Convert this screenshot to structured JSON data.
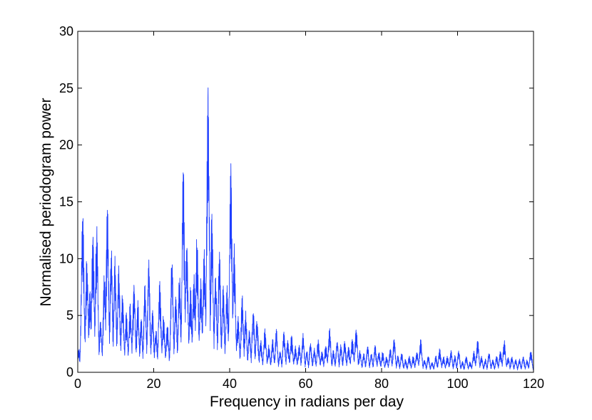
{
  "chart_data": {
    "type": "line",
    "title": "",
    "xlabel": "Frequency in radians per day",
    "ylabel": "Normalised periodogram power",
    "xlim": [
      0,
      120
    ],
    "ylim": [
      0,
      30
    ],
    "xticks": [
      0,
      20,
      40,
      60,
      80,
      100,
      120
    ],
    "yticks": [
      0,
      5,
      10,
      15,
      20,
      25,
      30
    ],
    "xtick_labels": [
      "0",
      "20",
      "40",
      "60",
      "80",
      "100",
      "120"
    ],
    "ytick_labels": [
      "0",
      "5",
      "10",
      "15",
      "20",
      "25",
      "30"
    ],
    "grid": false,
    "legend": "none",
    "line_color": "#1f3fff",
    "series": [
      {
        "peaks": [
          [
            0.3,
            2.2
          ],
          [
            1.3,
            16.0
          ],
          [
            2.4,
            11.0
          ],
          [
            3.2,
            8.0
          ],
          [
            4.0,
            13.2
          ],
          [
            5.0,
            14.0
          ],
          [
            6.0,
            5.0
          ],
          [
            7.0,
            9.0
          ],
          [
            7.8,
            15.6
          ],
          [
            8.8,
            11.5
          ],
          [
            9.8,
            10.4
          ],
          [
            10.8,
            10.0
          ],
          [
            11.8,
            7.5
          ],
          [
            12.8,
            5.5
          ],
          [
            13.8,
            6.5
          ],
          [
            14.8,
            8.8
          ],
          [
            15.8,
            6.5
          ],
          [
            16.7,
            5.0
          ],
          [
            17.7,
            8.0
          ],
          [
            18.7,
            10.4
          ],
          [
            19.7,
            6.0
          ],
          [
            20.6,
            4.0
          ],
          [
            21.6,
            8.5
          ],
          [
            22.6,
            5.5
          ],
          [
            23.6,
            4.5
          ],
          [
            24.8,
            10.6
          ],
          [
            25.8,
            7.0
          ],
          [
            26.8,
            9.0
          ],
          [
            27.8,
            19.4
          ],
          [
            28.7,
            13.0
          ],
          [
            29.7,
            8.0
          ],
          [
            30.6,
            9.5
          ],
          [
            31.4,
            13.2
          ],
          [
            32.4,
            9.0
          ],
          [
            33.3,
            12.0
          ],
          [
            34.3,
            27.5
          ],
          [
            35.3,
            15.0
          ],
          [
            36.3,
            9.0
          ],
          [
            37.3,
            11.0
          ],
          [
            38.3,
            8.0
          ],
          [
            39.3,
            8.0
          ],
          [
            40.3,
            19.9
          ],
          [
            41.2,
            12.0
          ],
          [
            42.2,
            5.5
          ],
          [
            43.3,
            7.0
          ],
          [
            44.2,
            5.5
          ],
          [
            45.2,
            4.0
          ],
          [
            46.2,
            6.0
          ],
          [
            47.2,
            5.0
          ],
          [
            48.2,
            3.0
          ],
          [
            49.3,
            4.2
          ],
          [
            50.3,
            2.5
          ],
          [
            51.3,
            3.0
          ],
          [
            52.3,
            3.8
          ],
          [
            53.3,
            2.0
          ],
          [
            54.3,
            3.8
          ],
          [
            55.3,
            3.0
          ],
          [
            56.3,
            3.5
          ],
          [
            57.3,
            2.5
          ],
          [
            58.3,
            2.6
          ],
          [
            59.3,
            3.5
          ],
          [
            60.3,
            2.0
          ],
          [
            61.3,
            2.8
          ],
          [
            62.3,
            2.2
          ],
          [
            63.3,
            3.0
          ],
          [
            64.3,
            2.0
          ],
          [
            65.3,
            2.6
          ],
          [
            66.3,
            4.2
          ],
          [
            67.3,
            2.0
          ],
          [
            68.3,
            3.0
          ],
          [
            69.3,
            2.5
          ],
          [
            70.3,
            3.0
          ],
          [
            71.3,
            2.5
          ],
          [
            72.3,
            3.2
          ],
          [
            73.3,
            4.2
          ],
          [
            74.3,
            2.0
          ],
          [
            75.3,
            1.8
          ],
          [
            76.3,
            2.5
          ],
          [
            77.3,
            1.8
          ],
          [
            78.3,
            2.5
          ],
          [
            79.3,
            2.0
          ],
          [
            80.3,
            2.0
          ],
          [
            81.3,
            1.5
          ],
          [
            82.3,
            2.2
          ],
          [
            83.3,
            3.2
          ],
          [
            84.3,
            1.5
          ],
          [
            85.3,
            1.8
          ],
          [
            86.3,
            1.2
          ],
          [
            87.3,
            1.5
          ],
          [
            88.3,
            1.5
          ],
          [
            89.3,
            2.0
          ],
          [
            90.3,
            3.0
          ],
          [
            91.3,
            1.2
          ],
          [
            92.3,
            1.5
          ],
          [
            93.3,
            1.0
          ],
          [
            94.3,
            1.5
          ],
          [
            95.3,
            2.2
          ],
          [
            96.3,
            1.5
          ],
          [
            97.3,
            1.5
          ],
          [
            98.3,
            2.0
          ],
          [
            99.3,
            1.5
          ],
          [
            100.3,
            2.0
          ],
          [
            101.3,
            1.0
          ],
          [
            102.3,
            1.5
          ],
          [
            103.3,
            1.0
          ],
          [
            104.3,
            2.0
          ],
          [
            105.3,
            3.0
          ],
          [
            106.3,
            1.5
          ],
          [
            107.3,
            1.2
          ],
          [
            108.3,
            1.8
          ],
          [
            109.3,
            1.2
          ],
          [
            110.3,
            1.5
          ],
          [
            111.3,
            2.0
          ],
          [
            112.3,
            3.0
          ],
          [
            113.3,
            1.5
          ],
          [
            114.3,
            1.5
          ],
          [
            115.3,
            1.2
          ],
          [
            116.3,
            1.2
          ],
          [
            117.3,
            1.5
          ],
          [
            118.3,
            1.2
          ],
          [
            119.3,
            2.0
          ]
        ]
      }
    ]
  }
}
